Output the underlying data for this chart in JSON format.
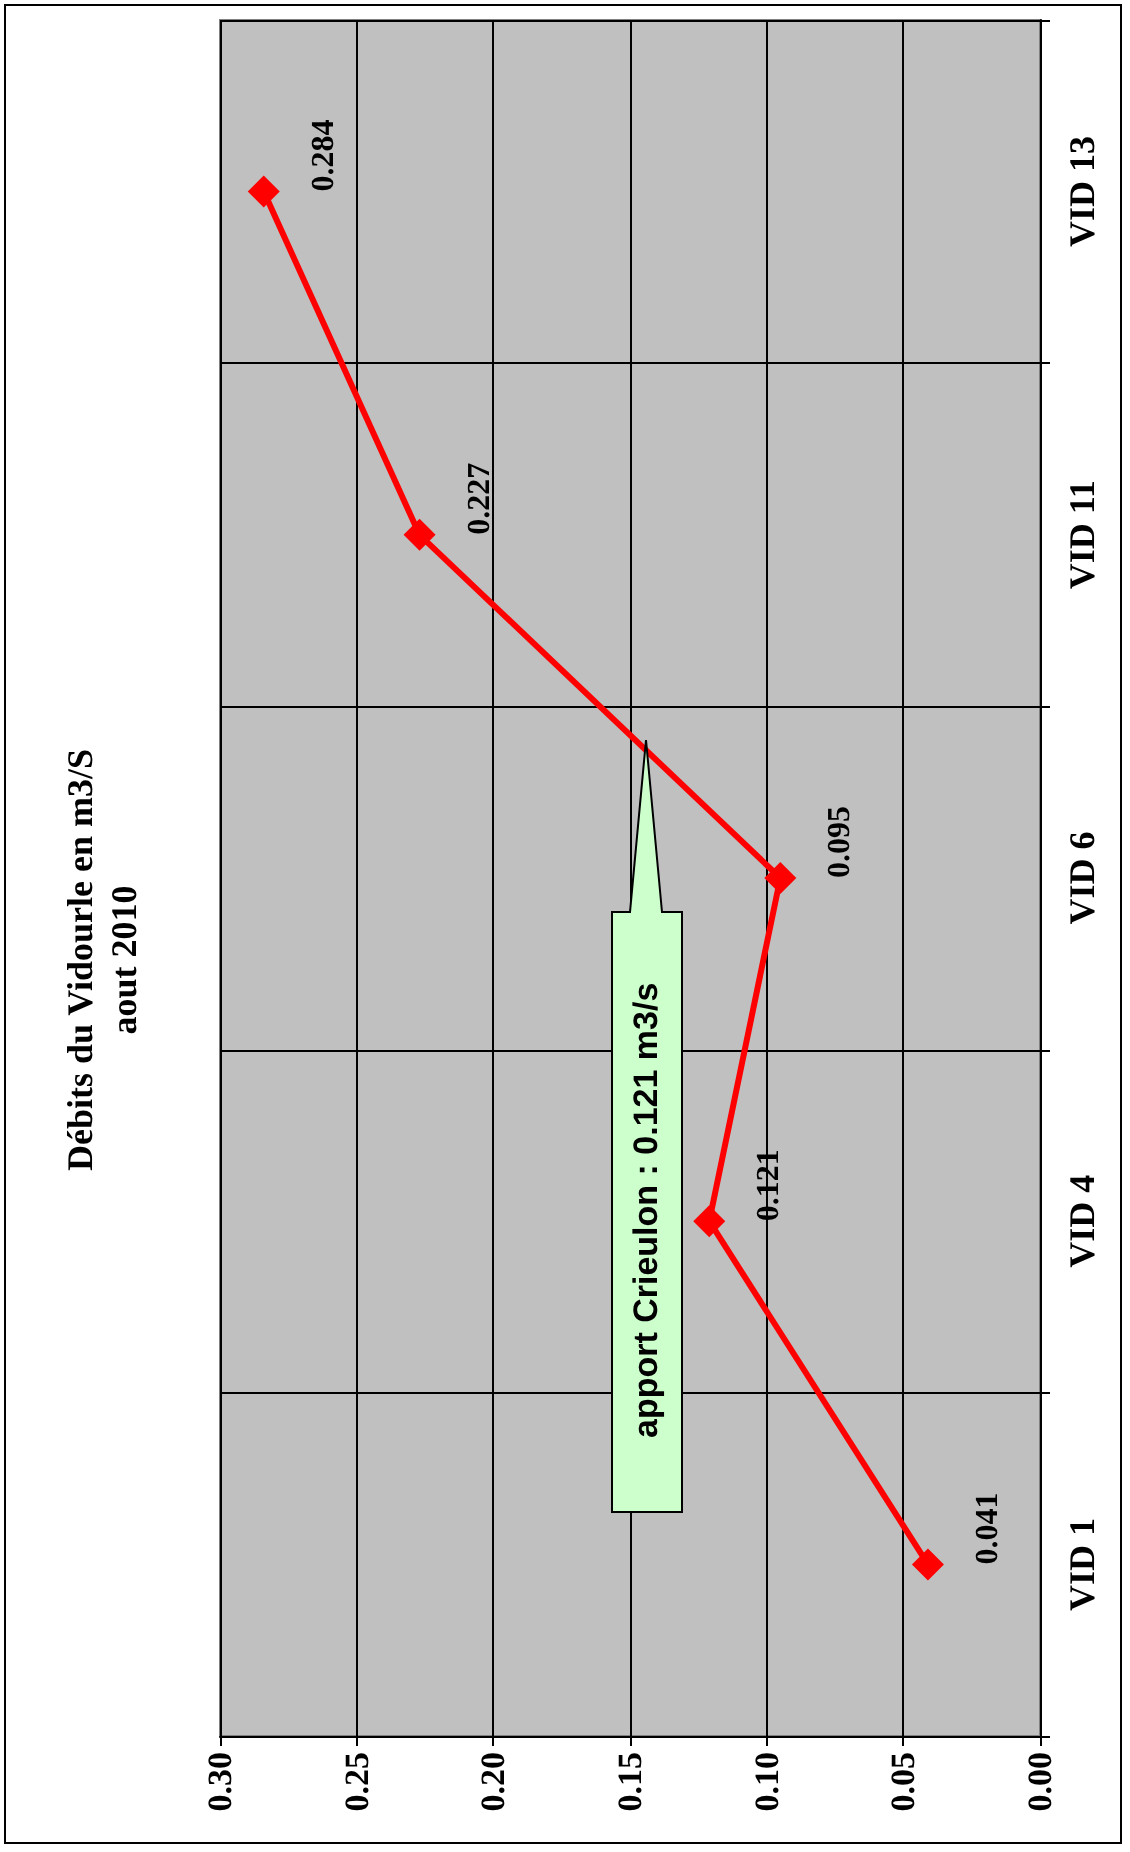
{
  "chart_data": {
    "type": "line",
    "title": "Débits du Vidourle en m3/S",
    "subtitle": "aout 2010",
    "orientation": "horizontal",
    "categories": [
      "VID 13",
      "VID 11",
      "VID 6",
      "VID 4",
      "VID 1"
    ],
    "series": [
      {
        "color": "#ff0000",
        "values": [
          0.284,
          0.227,
          0.095,
          0.121,
          0.041
        ]
      }
    ],
    "xlim": [
      0.3,
      0
    ],
    "xticks": [
      {
        "value": 0.3,
        "label": "0.30"
      },
      {
        "value": 0.25,
        "label": "0.25"
      },
      {
        "value": 0.2,
        "label": "0.20"
      },
      {
        "value": 0.15,
        "label": "0.15"
      },
      {
        "value": 0.1,
        "label": "0.10"
      },
      {
        "value": 0.05,
        "label": "0.05"
      },
      {
        "value": 0,
        "label": "0.00"
      }
    ],
    "grid": true,
    "marker": "diamond",
    "line_style": "solid",
    "data_labels": true,
    "annotations": [
      "apport Crieulon : 0.121 m3/s"
    ]
  }
}
